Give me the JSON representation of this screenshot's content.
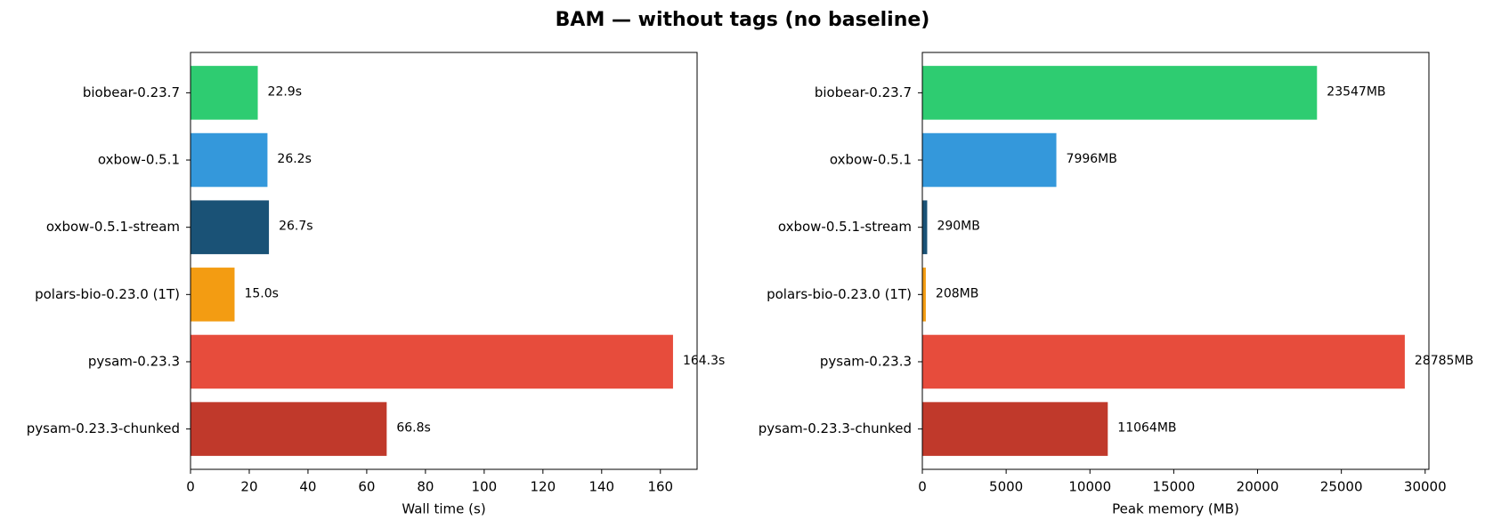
{
  "title": "BAM — without tags (no baseline)",
  "chart_data": [
    {
      "type": "barh",
      "xlabel": "Wall time (s)",
      "categories": [
        "biobear-0.23.7",
        "oxbow-0.5.1",
        "oxbow-0.5.1-stream",
        "polars-bio-0.23.0 (1T)",
        "pysam-0.23.3",
        "pysam-0.23.3-chunked"
      ],
      "values": [
        22.9,
        26.2,
        26.7,
        15.0,
        164.3,
        66.8
      ],
      "value_labels": [
        "22.9s",
        "26.2s",
        "26.7s",
        "15.0s",
        "164.3s",
        "66.8s"
      ],
      "colors": [
        "#2ecc71",
        "#3498db",
        "#1a5276",
        "#f39c12",
        "#e74c3c",
        "#c0392b"
      ],
      "xlim": [
        0,
        172.5
      ],
      "xticks": [
        0,
        20,
        40,
        60,
        80,
        100,
        120,
        140,
        160
      ]
    },
    {
      "type": "barh",
      "xlabel": "Peak memory (MB)",
      "categories": [
        "biobear-0.23.7",
        "oxbow-0.5.1",
        "oxbow-0.5.1-stream",
        "polars-bio-0.23.0 (1T)",
        "pysam-0.23.3",
        "pysam-0.23.3-chunked"
      ],
      "values": [
        23547,
        7996,
        290,
        208,
        28785,
        11064
      ],
      "value_labels": [
        "23547MB",
        "7996MB",
        "290MB",
        "208MB",
        "28785MB",
        "11064MB"
      ],
      "colors": [
        "#2ecc71",
        "#3498db",
        "#1a5276",
        "#f39c12",
        "#e74c3c",
        "#c0392b"
      ],
      "xlim": [
        0,
        30224
      ],
      "xticks": [
        0,
        5000,
        10000,
        15000,
        20000,
        25000,
        30000
      ]
    }
  ]
}
